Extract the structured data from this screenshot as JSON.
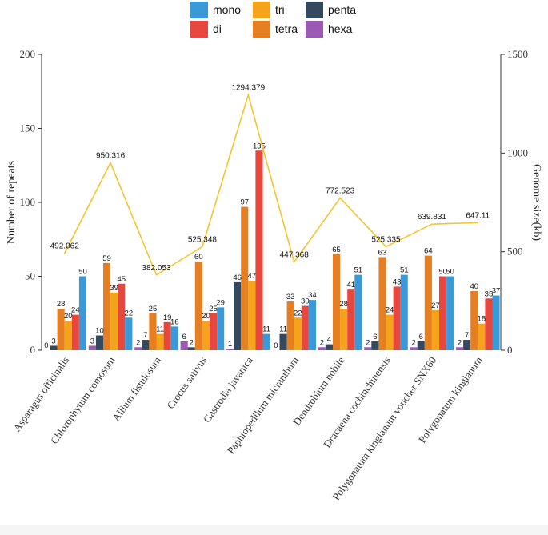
{
  "chart_data": {
    "type": "bar",
    "categories": [
      "Asparagus officinalis",
      "Chlorophytum comosum",
      "Allium fistulosum",
      "Crocus sativus",
      "Gastrodia javanica",
      "Paphiopedilum micranthum",
      "Dendrobium nobile",
      "Dracaena cochinchinensis",
      "Polygonatum kingianum voucher SNX60",
      "Polygonatum kingianum"
    ],
    "series": [
      {
        "name": "mono",
        "color": "#3a9ad9",
        "values": [
          50,
          22,
          16,
          29,
          11,
          34,
          51,
          51,
          50,
          37
        ],
        "labels": [
          "50",
          "22",
          "16",
          "29",
          "11",
          "34",
          "51",
          "51",
          "50",
          "37"
        ]
      },
      {
        "name": "di",
        "color": "#e8473e",
        "values": [
          24,
          45,
          19,
          25,
          135,
          30,
          41,
          43,
          50,
          35
        ],
        "labels": [
          "24",
          "45",
          "19",
          "25",
          "135",
          "30",
          "41",
          "43",
          "50",
          "35"
        ]
      },
      {
        "name": "tri",
        "color": "#f5a31a",
        "values": [
          20,
          39,
          11,
          20,
          47,
          22,
          28,
          24,
          27,
          18
        ],
        "labels": [
          "20",
          "39",
          "11",
          "20",
          "47",
          "22",
          "28",
          "24",
          "27",
          "18"
        ]
      },
      {
        "name": "tetra",
        "color": "#e67e22",
        "values": [
          28,
          59,
          25,
          60,
          97,
          33,
          65,
          63,
          64,
          40
        ],
        "labels": [
          "28",
          "59",
          "25",
          "60",
          "97",
          "33",
          "65",
          "63",
          "64",
          "40"
        ]
      },
      {
        "name": "penta",
        "color": "#34495e",
        "values": [
          3,
          10,
          7,
          2,
          46,
          11,
          4,
          6,
          6,
          7
        ],
        "labels": [
          "3",
          "10",
          "7",
          "2",
          "46",
          "11",
          "4",
          "6",
          "6",
          "7"
        ]
      },
      {
        "name": "hexa",
        "color": "#9b59b6",
        "values": [
          0,
          3,
          2,
          6,
          1,
          0,
          2,
          2,
          2,
          2
        ],
        "labels": [
          "0",
          "3",
          "2",
          "6",
          "1",
          "0",
          "2",
          "2",
          "2",
          "2"
        ]
      }
    ],
    "draw_order": [
      "hexa",
      "penta",
      "tetra",
      "tri",
      "di",
      "mono"
    ],
    "legend_order": [
      "mono",
      "di",
      "tri",
      "tetra",
      "penta",
      "hexa"
    ],
    "legend_position": "top",
    "line": {
      "name": "Genome size(kb)",
      "axis": "right",
      "color": "#f4c430",
      "values": [
        492.062,
        950.316,
        382.053,
        525.348,
        1294.379,
        447.368,
        772.523,
        525.335,
        639.831,
        647.11
      ],
      "labels": [
        "492.062",
        "950.316",
        "382.053",
        "525.348",
        "1294.379",
        "447.368",
        "772.523",
        "525.335",
        "639.831",
        "647.11"
      ]
    },
    "ylabel": "Number of repeats",
    "y2label": "Genome size(kb)",
    "xlabel": "",
    "ylim": [
      0,
      200
    ],
    "yticks": [
      "0",
      "50",
      "100",
      "150",
      "200"
    ],
    "y2lim": [
      0,
      1500
    ],
    "y2ticks": [
      "0",
      "500",
      "1000",
      "1500"
    ],
    "grid": false
  }
}
